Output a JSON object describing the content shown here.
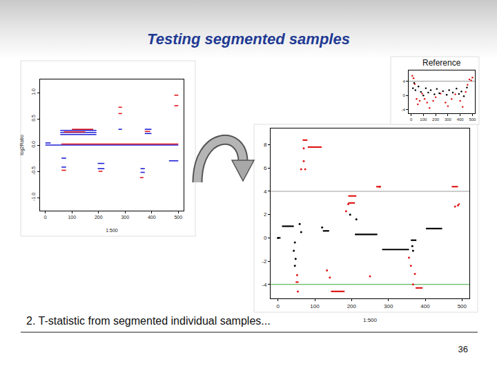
{
  "slide": {
    "title": "Testing segmented samples",
    "caption": "2. T-statistic from segmented individual samples...",
    "page": 36
  },
  "chart_data": [
    {
      "type": "line",
      "xlabel": "1:500",
      "ylabel": "log2Ratio",
      "xlim": [
        -20,
        520
      ],
      "ylim": [
        -1.25,
        1.25
      ],
      "xticks": [
        0,
        100,
        200,
        300,
        400,
        500
      ],
      "yticks": [
        {
          "value": -1,
          "label": "-1.0"
        },
        {
          "value": -0.5,
          "label": "-0.5"
        },
        {
          "value": 0,
          "label": "0.0"
        },
        {
          "value": 0.5,
          "label": "0.5"
        },
        {
          "value": 1,
          "label": "1.0"
        }
      ],
      "series": [
        {
          "color": "#1f1fd6",
          "x": [
            0,
            500,
            null,
            56,
            192,
            null,
            56,
            192,
            null,
            56,
            192,
            null,
            61,
            78,
            null,
            61,
            78,
            null,
            197,
            222,
            null,
            197,
            222,
            null,
            358,
            374,
            null,
            358,
            374,
            null,
            374,
            399,
            null,
            374,
            399,
            null,
            465,
            500,
            null,
            0,
            20,
            null,
            275,
            288
          ],
          "values": [
            0,
            0,
            null,
            0.28,
            0.28,
            null,
            0.24,
            0.24,
            null,
            0.2,
            0.2,
            null,
            -0.25,
            -0.25,
            null,
            -0.42,
            -0.42,
            null,
            -0.35,
            -0.35,
            null,
            -0.45,
            -0.45,
            null,
            -0.45,
            -0.45,
            null,
            -0.52,
            -0.52,
            null,
            0.3,
            0.3,
            null,
            0.22,
            0.22,
            null,
            -0.3,
            -0.3,
            null,
            0.04,
            0.04,
            null,
            0.3,
            0.3
          ]
        },
        {
          "color": "#e01818",
          "x": [
            485,
            500,
            null,
            485,
            500,
            null,
            275,
            288,
            null,
            275,
            288,
            null,
            70,
            150,
            null,
            100,
            180,
            null,
            60,
            500,
            null,
            374,
            394,
            null,
            356,
            369,
            null,
            61,
            78,
            null,
            200,
            215
          ],
          "values": [
            0.95,
            0.95,
            null,
            0.75,
            0.75,
            null,
            0.72,
            0.72,
            null,
            0.6,
            0.6,
            null,
            0.25,
            0.25,
            null,
            0.3,
            0.3,
            null,
            0.02,
            0.02,
            null,
            0.26,
            0.26,
            null,
            -0.62,
            -0.62,
            null,
            -0.48,
            -0.48,
            null,
            -0.5,
            -0.5
          ]
        }
      ]
    },
    {
      "type": "line",
      "xlabel": "1:500",
      "xlim": [
        -20,
        520
      ],
      "ylim": [
        -5.2,
        9.4
      ],
      "xticks": [
        0,
        100,
        200,
        300,
        400,
        500
      ],
      "yticks": [
        -4,
        -2,
        0,
        2,
        4,
        6,
        8
      ],
      "reference_lines": [
        {
          "value": 4,
          "color": "#9a9a9a"
        },
        {
          "value": -4,
          "color": "#3aa63a"
        }
      ],
      "series": [
        {
          "type": "line",
          "color": "#000000",
          "x": [
            11,
            43,
            null,
            0,
            7,
            null,
            122,
            139,
            null,
            209,
            270,
            null,
            283,
            356,
            null,
            402,
            446,
            null,
            361,
            376
          ],
          "values": [
            1.0,
            1.0,
            null,
            0,
            0,
            null,
            0.6,
            0.6,
            null,
            0.3,
            0.3,
            null,
            -1.0,
            -1.0,
            null,
            0.8,
            0.8,
            null,
            -0.2,
            -0.2
          ]
        },
        {
          "type": "line",
          "color": "#e01818",
          "x": [
            67,
            80,
            null,
            81,
            119,
            null,
            191,
            213,
            null,
            191,
            209,
            null,
            267,
            280,
            null,
            144,
            181,
            null,
            48,
            56,
            null,
            374,
            393,
            null,
            472,
            489,
            null,
            490,
            494
          ],
          "values": [
            8.4,
            8.4,
            null,
            7.8,
            7.8,
            null,
            3.6,
            3.6,
            null,
            3.0,
            3.0,
            null,
            4.4,
            4.4,
            null,
            -4.6,
            -4.6,
            null,
            -3.8,
            -3.8,
            null,
            -4.3,
            -4.3,
            null,
            4.4,
            4.4,
            null,
            2.9,
            2.9
          ]
        },
        {
          "type": "scatter",
          "marker": "circle",
          "color": "#e01818",
          "x": [
            70,
            74,
            63,
            52,
            54,
            133,
            141,
            191,
            185,
            250,
            276,
            356,
            361,
            372,
            367,
            481,
            489,
            70
          ],
          "values": [
            6.6,
            5.9,
            5.9,
            -3.2,
            -4.6,
            -2.8,
            -3.4,
            2.9,
            2.3,
            -3.3,
            4.4,
            -1.7,
            -2.4,
            -3.1,
            -4.0,
            2.7,
            2.8,
            7.7
          ]
        },
        {
          "type": "scatter",
          "marker": "circle",
          "color": "#000000",
          "x": [
            43,
            46,
            48,
            59,
            63,
            46,
            196,
            213,
            365,
            367,
            0,
            120
          ],
          "values": [
            -1.1,
            -2.4,
            -1.8,
            1.2,
            0.5,
            -0.4,
            2.0,
            1.6,
            -0.7,
            -1.1,
            0,
            0.9
          ]
        }
      ]
    },
    {
      "type": "scatter",
      "title": "Reference",
      "xlim": [
        -20,
        520
      ],
      "ylim": [
        -5,
        7
      ],
      "xticks": [
        0,
        100,
        200,
        300,
        400,
        500
      ],
      "yticks": [
        -4,
        0,
        4
      ],
      "reference_lines": [
        {
          "value": 4,
          "color": "#9a9a9a"
        }
      ],
      "series": [
        {
          "marker": "circle",
          "color": "#e01818",
          "x": [
            10,
            20,
            30,
            45,
            55,
            70,
            90,
            110,
            130,
            150,
            180,
            200,
            240,
            280,
            300,
            330,
            360,
            400,
            420,
            445,
            460,
            475,
            490,
            500
          ],
          "values": [
            5.5,
            4.8,
            3.2,
            -1,
            -2.5,
            -1.5,
            0.5,
            -1,
            -2,
            -3.5,
            -1.5,
            -0.5,
            0.5,
            -2,
            -3,
            -1,
            0.3,
            -1.5,
            -3.2,
            1,
            3,
            4.5,
            4.2,
            5.0
          ]
        },
        {
          "marker": "circle",
          "color": "#000000",
          "x": [
            15,
            25,
            35,
            60,
            80,
            100,
            120,
            140,
            160,
            190,
            210,
            230,
            260,
            290,
            310,
            340,
            370,
            390,
            410,
            430,
            455
          ],
          "values": [
            2,
            3.5,
            1.5,
            2.5,
            1.0,
            0.0,
            2,
            0.8,
            1.5,
            0.3,
            1.8,
            0.6,
            1.2,
            0.2,
            1.5,
            0.8,
            1.9,
            0.4,
            1.1,
            -0.2,
            2.2
          ]
        }
      ]
    }
  ]
}
